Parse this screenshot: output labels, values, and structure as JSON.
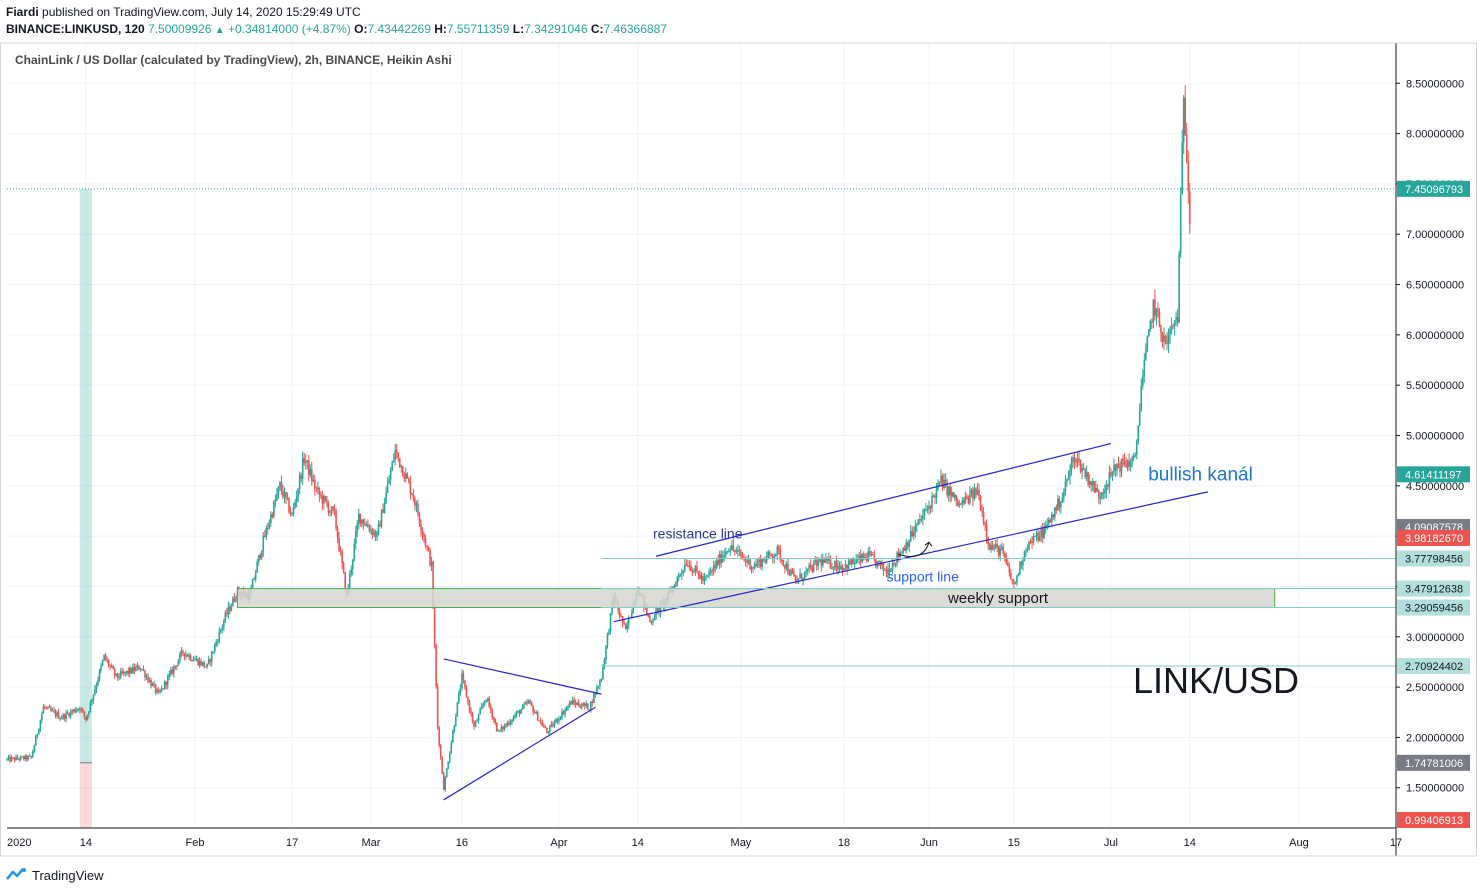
{
  "header": {
    "author": "Fiardi",
    "published_text": "published on TradingView.com, July 14, 2020 15:29:49 UTC",
    "symbol": "BINANCE:LINKUSD, 120",
    "last": "7.50009926",
    "change": "+0.34814000 (+4.87%)",
    "o_label": "O:",
    "o": "7.43442269",
    "h_label": "H:",
    "h": "7.55711359",
    "l_label": "L:",
    "l": "7.34291046",
    "c_label": "C:",
    "c": "7.46366887"
  },
  "footer": {
    "brand": "TradingView"
  },
  "chart_data": {
    "type": "candlestick",
    "title": "ChainLink / US Dollar (calculated by TradingView), 2h, BINANCE, Heikin Ashi",
    "watermark": "LINK/USD",
    "ylim": [
      1.1,
      8.9
    ],
    "y_ticks": [
      "8.50000000",
      "8.00000000",
      "7.50000000",
      "7.00000000",
      "6.50000000",
      "6.00000000",
      "5.50000000",
      "5.00000000",
      "4.50000000",
      "4.00000000",
      "3.50000000",
      "3.00000000",
      "2.50000000",
      "2.00000000",
      "1.50000000"
    ],
    "x_ticks": [
      "2020",
      "14",
      "Feb",
      "17",
      "Mar",
      "16",
      "Apr",
      "14",
      "May",
      "18",
      "Jun",
      "15",
      "Jul",
      "14",
      "Aug",
      "17"
    ],
    "x_range": [
      "2020-01-01",
      "2020-08-17"
    ],
    "price_path": [
      [
        "2020-01-01",
        1.78
      ],
      [
        "2020-01-05",
        1.8
      ],
      [
        "2020-01-07",
        2.3
      ],
      [
        "2020-01-10",
        2.2
      ],
      [
        "2020-01-13",
        2.3
      ],
      [
        "2020-01-14",
        2.18
      ],
      [
        "2020-01-17",
        2.8
      ],
      [
        "2020-01-19",
        2.6
      ],
      [
        "2020-01-23",
        2.7
      ],
      [
        "2020-01-26",
        2.42
      ],
      [
        "2020-01-30",
        2.85
      ],
      [
        "2020-02-03",
        2.7
      ],
      [
        "2020-02-06",
        3.2
      ],
      [
        "2020-02-08",
        3.45
      ],
      [
        "2020-02-10",
        3.4
      ],
      [
        "2020-02-12",
        3.9
      ],
      [
        "2020-02-15",
        4.5
      ],
      [
        "2020-02-17",
        4.2
      ],
      [
        "2020-02-19",
        4.78
      ],
      [
        "2020-02-21",
        4.45
      ],
      [
        "2020-02-24",
        4.2
      ],
      [
        "2020-02-26",
        3.4
      ],
      [
        "2020-02-28",
        4.2
      ],
      [
        "2020-03-02",
        4.0
      ],
      [
        "2020-03-05",
        4.85
      ],
      [
        "2020-03-08",
        4.4
      ],
      [
        "2020-03-11",
        3.7
      ],
      [
        "2020-03-12",
        2.1
      ],
      [
        "2020-03-13",
        1.5
      ],
      [
        "2020-03-16",
        2.6
      ],
      [
        "2020-03-18",
        2.1
      ],
      [
        "2020-03-20",
        2.4
      ],
      [
        "2020-03-22",
        2.05
      ],
      [
        "2020-03-27",
        2.35
      ],
      [
        "2020-03-30",
        2.05
      ],
      [
        "2020-04-03",
        2.35
      ],
      [
        "2020-04-06",
        2.3
      ],
      [
        "2020-04-08",
        2.6
      ],
      [
        "2020-04-10",
        3.4
      ],
      [
        "2020-04-12",
        3.05
      ],
      [
        "2020-04-14",
        3.5
      ],
      [
        "2020-04-16",
        3.15
      ],
      [
        "2020-04-19",
        3.4
      ],
      [
        "2020-04-22",
        3.75
      ],
      [
        "2020-04-25",
        3.55
      ],
      [
        "2020-04-29",
        3.9
      ],
      [
        "2020-05-03",
        3.7
      ],
      [
        "2020-05-07",
        3.85
      ],
      [
        "2020-05-10",
        3.55
      ],
      [
        "2020-05-14",
        3.75
      ],
      [
        "2020-05-18",
        3.7
      ],
      [
        "2020-05-22",
        3.8
      ],
      [
        "2020-05-25",
        3.65
      ],
      [
        "2020-05-28",
        3.9
      ],
      [
        "2020-06-01",
        4.3
      ],
      [
        "2020-06-03",
        4.55
      ],
      [
        "2020-06-06",
        4.3
      ],
      [
        "2020-06-09",
        4.45
      ],
      [
        "2020-06-11",
        3.9
      ],
      [
        "2020-06-13",
        3.85
      ],
      [
        "2020-06-15",
        3.5
      ],
      [
        "2020-06-17",
        3.9
      ],
      [
        "2020-06-20",
        4.05
      ],
      [
        "2020-06-23",
        4.4
      ],
      [
        "2020-06-25",
        4.8
      ],
      [
        "2020-06-27",
        4.6
      ],
      [
        "2020-06-29",
        4.4
      ],
      [
        "2020-07-02",
        4.7
      ],
      [
        "2020-07-05",
        4.75
      ],
      [
        "2020-07-06",
        5.5
      ],
      [
        "2020-07-08",
        6.3
      ],
      [
        "2020-07-10",
        5.9
      ],
      [
        "2020-07-12",
        6.2
      ],
      [
        "2020-07-13",
        8.4
      ],
      [
        "2020-07-14",
        7.2
      ]
    ],
    "overlays": [
      {
        "type": "long_position",
        "start": "2020-01-13",
        "end": "2020-01-15",
        "entry": 1.7478,
        "target": 7.45,
        "stop": 0.994
      },
      {
        "type": "zone",
        "label": "weekly support",
        "start": "2020-02-08",
        "end": "2020-07-28",
        "low": 3.2906,
        "high": 3.4791
      },
      {
        "type": "trendline",
        "label": "resistance line",
        "points": [
          [
            "2020-04-17",
            3.8
          ],
          [
            "2020-07-01",
            4.92
          ]
        ]
      },
      {
        "type": "trendline",
        "label": "support line",
        "points": [
          [
            "2020-04-10",
            3.15
          ],
          [
            "2020-07-17",
            4.44
          ]
        ]
      },
      {
        "type": "trendline",
        "points": [
          [
            "2020-03-13",
            2.78
          ],
          [
            "2020-04-08",
            2.43
          ]
        ]
      },
      {
        "type": "trendline",
        "points": [
          [
            "2020-03-13",
            1.38
          ],
          [
            "2020-04-07",
            2.3
          ]
        ]
      },
      {
        "type": "text",
        "label": "bullish kanál"
      }
    ],
    "price_labels": [
      {
        "value": 7.45096793,
        "text": "7.45096793",
        "color": "#26a69a"
      },
      {
        "value": 4.61411197,
        "text": "4.61411197",
        "color": "#26a69a"
      },
      {
        "value": 4.09087578,
        "text": "4.09087578",
        "color": "#787b86"
      },
      {
        "value": 3.9818267,
        "text": "3.98182670",
        "color": "#ef5350"
      },
      {
        "value": 3.77798456,
        "text": "3.77798456",
        "color": "#b2dfdb"
      },
      {
        "value": 3.47912638,
        "text": "3.47912638",
        "color": "#b2dfdb"
      },
      {
        "value": 3.29059456,
        "text": "3.29059456",
        "color": "#b2dfdb"
      },
      {
        "value": 2.70924402,
        "text": "2.70924402",
        "color": "#b2dfdb"
      },
      {
        "value": 1.74781006,
        "text": "1.74781006",
        "color": "#787b86"
      },
      {
        "value": 0.99406913,
        "text": "0.99406913",
        "color": "#ef5350"
      }
    ],
    "last_price": 7.45096793,
    "colors": {
      "up": "#26a69a",
      "down": "#ef5350",
      "lines": "#2424c8",
      "annotation": "#2962ff"
    }
  }
}
